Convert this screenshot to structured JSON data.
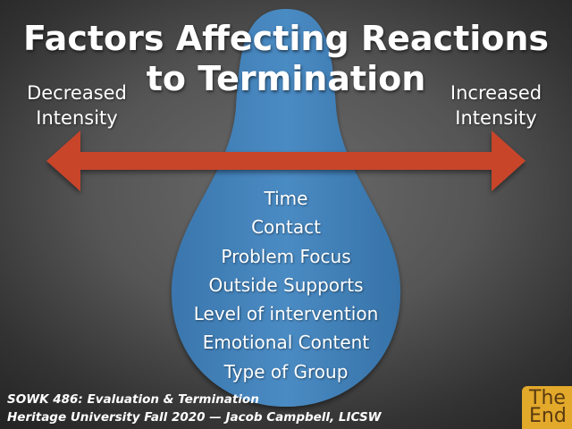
{
  "title": {
    "line1": "Factors Affecting Reactions",
    "line2": "to Termination"
  },
  "scale": {
    "left_line1": "Decreased",
    "left_line2": "Intensity",
    "right_line1": "Increased",
    "right_line2": "Intensity"
  },
  "factors": [
    "Time",
    "Contact",
    "Problem Focus",
    "Outside Supports",
    "Level of intervention",
    "Emotional Content",
    "Type of Group"
  ],
  "footer": {
    "course": "SOWK 486: Evaluation & Termination",
    "credit": "Heritage University Fall 2020 — Jacob Campbell, LICSW"
  },
  "logo": {
    "line1": "The",
    "line2": "End"
  },
  "colors": {
    "drop": "#3f7db4",
    "arrow": "#c8442c",
    "logo": "#e3a92b"
  }
}
